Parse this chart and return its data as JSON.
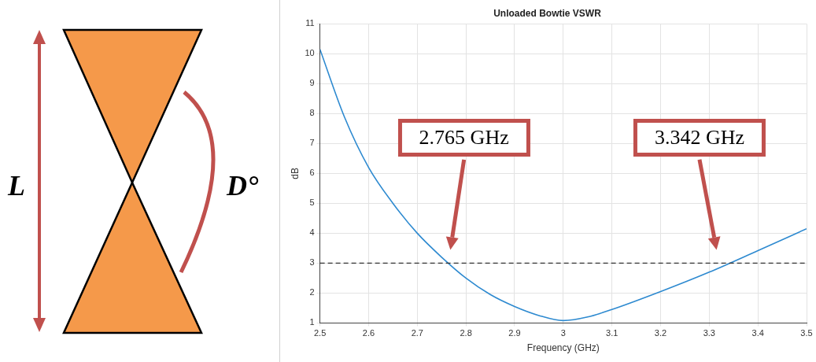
{
  "chart_data": {
    "type": "line",
    "title": "Unloaded Bowtie VSWR",
    "xlabel": "Frequency (GHz)",
    "ylabel": "dB",
    "x": [
      2.5,
      2.55,
      2.6,
      2.65,
      2.7,
      2.75,
      2.8,
      2.85,
      2.9,
      2.95,
      3.0,
      3.05,
      3.1,
      3.2,
      3.3,
      3.4,
      3.5
    ],
    "series": [
      {
        "color": "#2e8ad0",
        "values": [
          10.15,
          7.9,
          6.2,
          5.0,
          4.0,
          3.2,
          2.5,
          1.95,
          1.55,
          1.25,
          1.08,
          1.2,
          1.45,
          2.05,
          2.7,
          3.42,
          4.15
        ]
      }
    ],
    "xlim": [
      2.5,
      3.5
    ],
    "xticks": [
      2.5,
      2.6,
      2.7,
      2.8,
      2.9,
      3,
      3.1,
      3.2,
      3.3,
      3.4,
      3.5
    ],
    "ylim": [
      1,
      11
    ],
    "yticks": [
      1,
      2,
      3,
      4,
      5,
      6,
      7,
      8,
      9,
      10,
      11
    ],
    "ref_lines": [
      {
        "axis": "y",
        "value": 3,
        "color": "#333333",
        "line_style": "dashed"
      }
    ],
    "annotations": [
      "2.765 GHz",
      "3.342 GHz",
      "L",
      "D°"
    ],
    "grid": true,
    "marker": "none",
    "line_style": "solid"
  }
}
